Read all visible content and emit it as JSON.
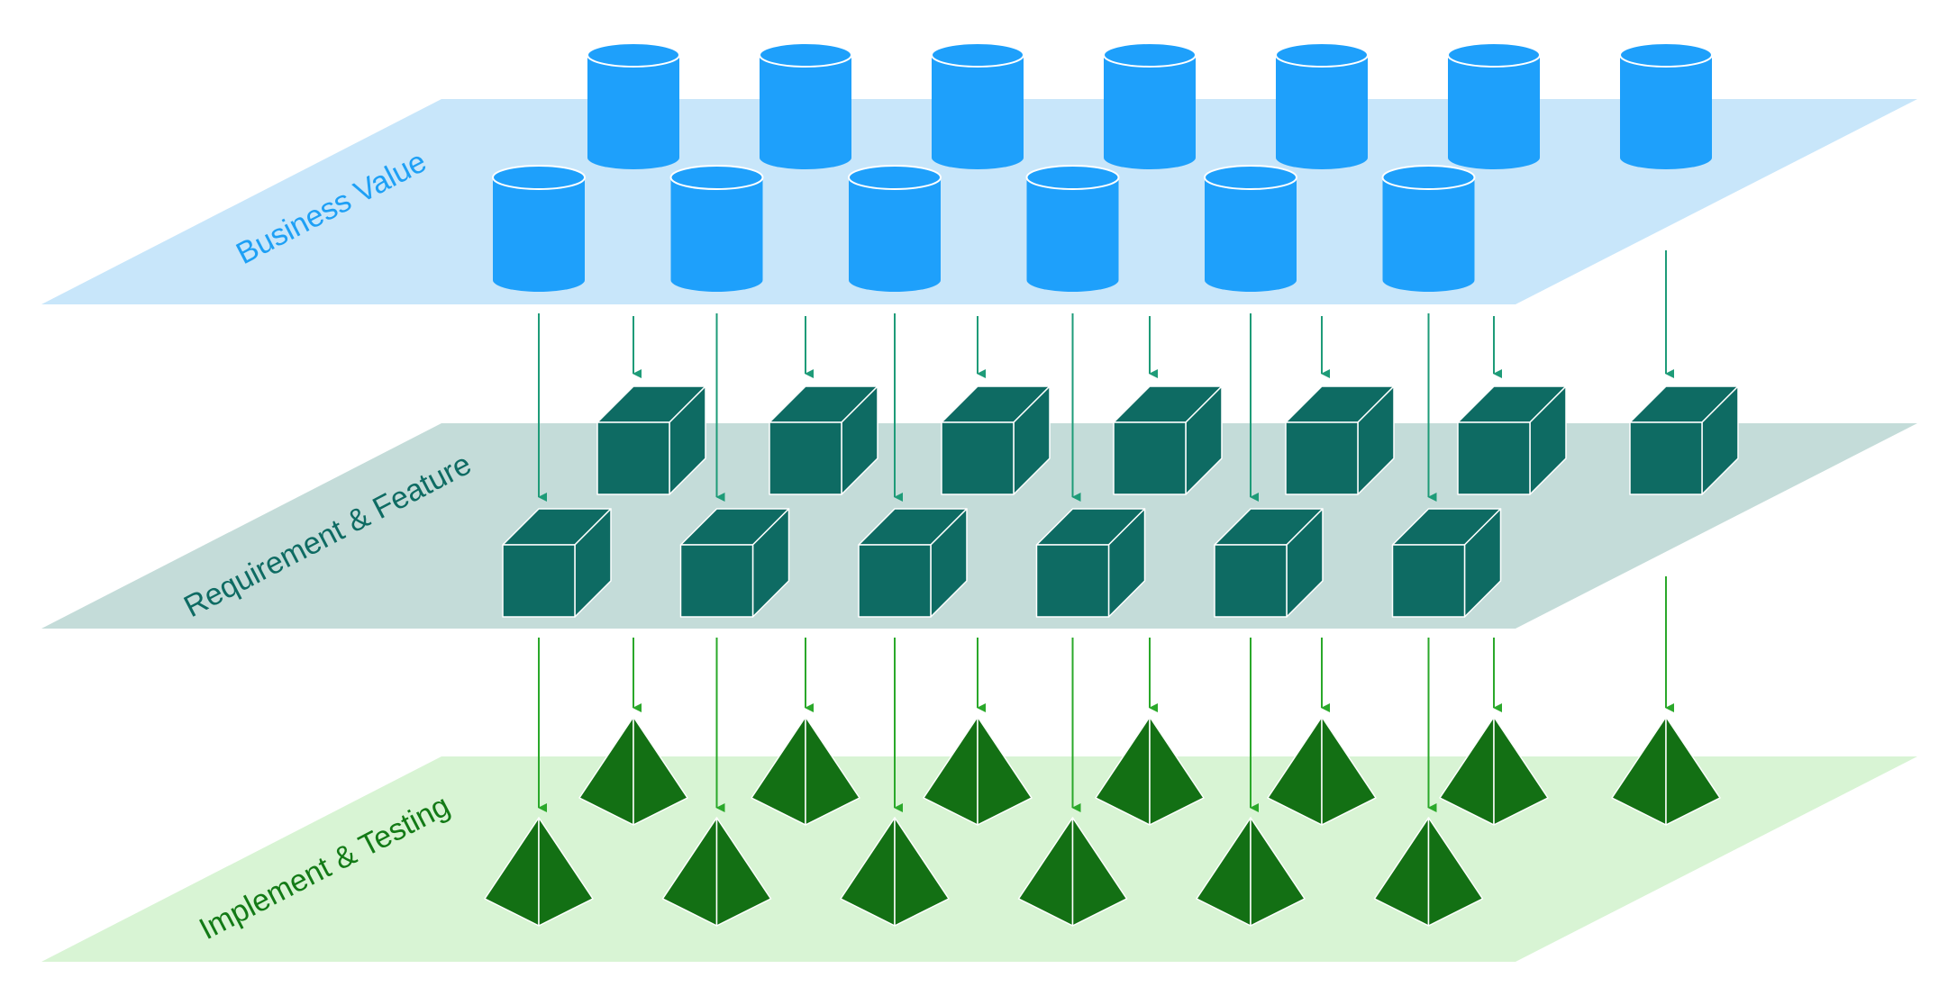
{
  "diagram": {
    "layers": [
      {
        "id": "business",
        "label": "Business Value",
        "plane_color": "#c8e6fa",
        "label_color": "#1ea0f5"
      },
      {
        "id": "requirement",
        "label": "Requirement & Feature",
        "plane_color": "#c4dcd9",
        "label_color": "#0e6b63"
      },
      {
        "id": "implement",
        "label": "Implement & Testing",
        "plane_color": "#d8f4d4",
        "label_color": "#137a16"
      }
    ],
    "colors": {
      "cylinder_fill": "#1ea0fb",
      "cube_fill": "#0e6b63",
      "pyramid_fill": "#137014",
      "arrow_upper": "#1e9b78",
      "arrow_lower": "#2aa82a",
      "edge": "#ffffff"
    },
    "icons": {
      "business": "cylinder-icon",
      "requirement": "cube-icon",
      "implement": "pyramid-icon"
    },
    "back_row_count": 7,
    "front_row_count": 6
  }
}
